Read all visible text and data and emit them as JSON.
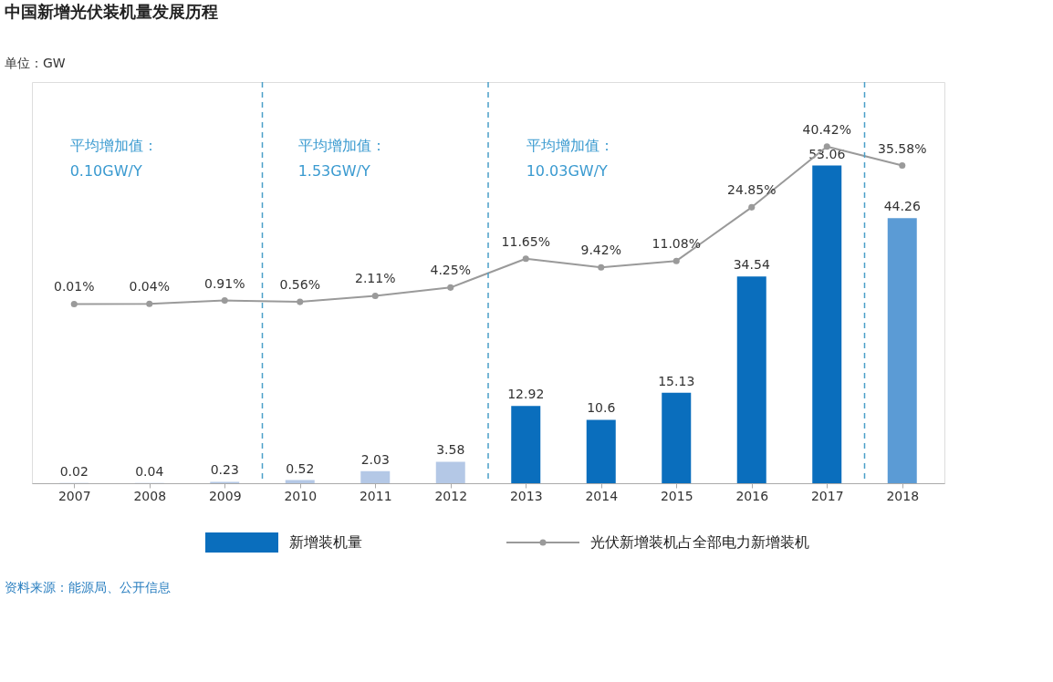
{
  "chart_data": {
    "type": "bar",
    "title": "中国新增光伏装机量发展历程",
    "x": [
      2007,
      2008,
      2009,
      2010,
      2011,
      2012,
      2013,
      2014,
      2015,
      2016,
      2017,
      2018
    ],
    "xlim": [
      2006.5,
      2018.5
    ],
    "xticks": [
      2007,
      2008,
      2009,
      2010,
      2011,
      2012,
      2013,
      2014,
      2015,
      2016,
      2017,
      2018
    ],
    "ylim": [
      0,
      67
    ],
    "y2lim": [
      -46,
      57
    ],
    "tick_labels": "x",
    "data_labels": true,
    "grid": false,
    "legend": "bottom",
    "series": [
      {
        "name": "新增装机量",
        "color": "#0a6ebd",
        "colors": [
          "#b4c8e6",
          "#b4c8e6",
          "#b4c8e6",
          "#b4c8e6",
          "#b4c8e6",
          "#b4c8e6",
          "#0a6ebd",
          "#0a6ebd",
          "#0a6ebd",
          "#0a6ebd",
          "#0a6ebd",
          "#5b9bd5"
        ],
        "values": [
          0.02,
          0.04,
          0.23,
          0.52,
          2.03,
          3.58,
          12.92,
          10.6,
          15.13,
          34.54,
          53.06,
          44.26
        ]
      },
      {
        "name": "光伏新增装机占全部电力新增装机",
        "type": "line",
        "axis": "y2",
        "color": "#9a9a9a",
        "marker": "circle",
        "values": [
          0.01,
          0.04,
          0.91,
          0.56,
          2.11,
          4.25,
          11.65,
          9.42,
          11.08,
          24.85,
          40.42,
          35.58
        ],
        "value_labels": [
          "0.01%",
          "0.04%",
          "0.91%",
          "0.56%",
          "2.11%",
          "4.25%",
          "11.65%",
          "9.42%",
          "11.08%",
          "24.85%",
          "40.42%",
          "35.58%"
        ]
      }
    ],
    "ref_lines": [
      {
        "axis": "x",
        "value": 2009.5,
        "color": "#4a9fc8",
        "line_style": "dashed"
      },
      {
        "axis": "x",
        "value": 2012.5,
        "color": "#4a9fc8",
        "line_style": "dashed"
      },
      {
        "axis": "x",
        "value": 2017.5,
        "color": "#4a9fc8",
        "line_style": "dashed"
      }
    ],
    "annotations": [
      "单位：GW",
      "平均增加值：",
      "0.10GW/Y",
      "平均增加值：",
      "1.53GW/Y",
      "平均增加值：",
      "10.03GW/Y",
      "资料来源：能源局、公开信息"
    ]
  }
}
